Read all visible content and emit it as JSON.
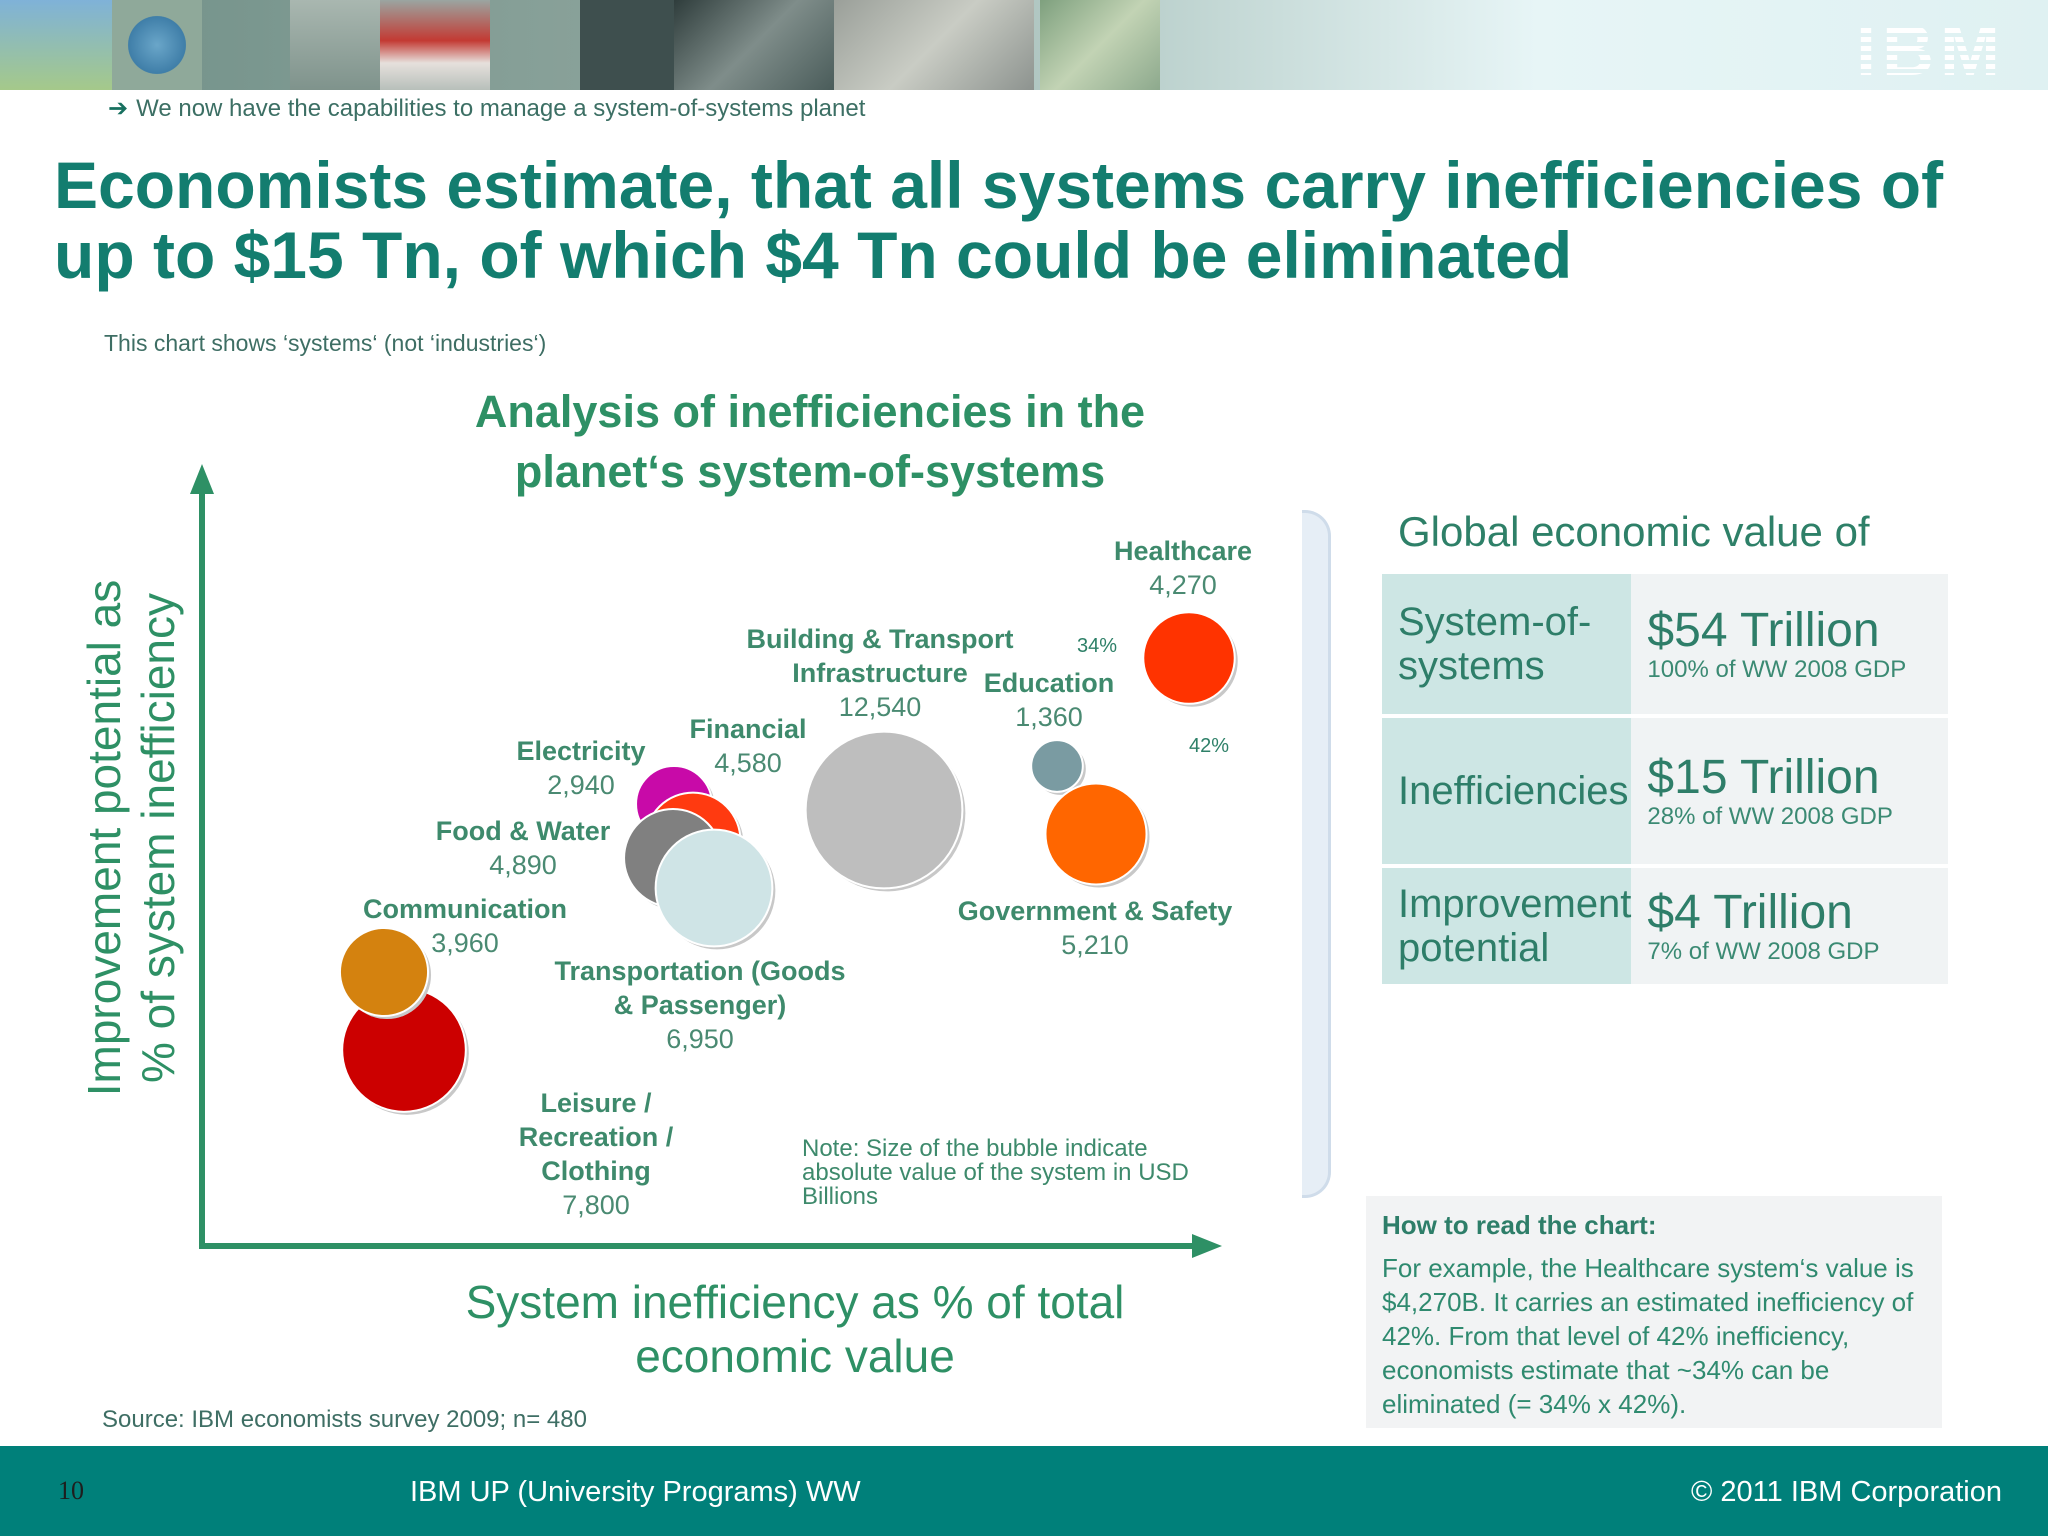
{
  "header": {
    "logo": "IBM",
    "breadcrumb": "We now have the capabilities to manage a system-of-systems planet",
    "breadcrumb_icon": "arrow-right-icon"
  },
  "title": "Economists estimate, that all systems carry inefficiencies of up to $15 Tn, of which $4 Tn could be eliminated",
  "subtitle_note": "This chart shows ‘systems‘ (not ‘industries‘)",
  "chart_data": {
    "type": "bubble",
    "title_lines": [
      "Analysis of inefficiencies in the",
      "planet‘s system-of-systems"
    ],
    "xlabel_lines": [
      "System inefficiency as % of total",
      "economic value"
    ],
    "ylabel_lines": [
      "Improvement potential as",
      "% of system inefficiency"
    ],
    "note": [
      "Note: Size of the bubble indicate",
      "absolute value of the system in USD",
      "Billions"
    ],
    "axis_ticks": "none",
    "series": [
      {
        "name": "Leisure / Recreation / Clothing",
        "label_lines": [
          "Leisure /",
          "Recreation /",
          "Clothing"
        ],
        "value": "7,800",
        "size": 7800,
        "x": 2,
        "y": 6,
        "color": "#cc0000"
      },
      {
        "name": "Communication",
        "label_lines": [
          "Communication"
        ],
        "value": "3,960",
        "size": 3960,
        "x": 2,
        "y": 20,
        "color": "#d4820f"
      },
      {
        "name": "Electricity",
        "label_lines": [
          "Electricity"
        ],
        "value": "2,940",
        "size": 2940,
        "x": 18,
        "y": 53,
        "color": "#c80aa8"
      },
      {
        "name": "Financial",
        "label_lines": [
          "Financial"
        ],
        "value": "4,580",
        "size": 4580,
        "x": 19,
        "y": 49,
        "color": "#ff3a10"
      },
      {
        "name": "Food & Water",
        "label_lines": [
          "Food & Water"
        ],
        "value": "4,890",
        "size": 4890,
        "x": 17,
        "y": 44,
        "color": "#808080"
      },
      {
        "name": "Transportation (Goods & Passenger)",
        "label_lines": [
          "Transportation (Goods",
          "& Passenger)"
        ],
        "value": "6,950",
        "size": 6950,
        "x": 20,
        "y": 40,
        "color": "#cfe4e6"
      },
      {
        "name": "Building & Transport Infrastructure",
        "label_lines": [
          "Building & Transport",
          "Infrastructure"
        ],
        "value": "12,540",
        "size": 12540,
        "x": 34,
        "y": 55,
        "color": "#bebebe"
      },
      {
        "name": "Education",
        "label_lines": [
          "Education"
        ],
        "value": "1,360",
        "size": 1360,
        "x": 42,
        "y": 62,
        "color": "#7a9ba2"
      },
      {
        "name": "Government & Safety",
        "label_lines": [
          "Government & Safety"
        ],
        "value": "5,210",
        "size": 5210,
        "x": 43,
        "y": 51,
        "color": "#ff6600"
      },
      {
        "name": "Healthcare",
        "label_lines": [
          "Healthcare"
        ],
        "value": "4,270",
        "size": 4270,
        "x": 42,
        "y": 34,
        "color": "#ff3300",
        "annotations": {
          "inefficiency": "42%",
          "improvement": "34%"
        }
      }
    ]
  },
  "global_value": {
    "title": "Global economic value of",
    "rows": [
      {
        "label": "System-of-systems",
        "big": "$54 Trillion",
        "small": "100% of WW 2008 GDP"
      },
      {
        "label": "Inefficiencies",
        "big": "$15 Trillion",
        "small": "28% of WW 2008 GDP"
      },
      {
        "label": "Improvement potential",
        "big": "$4 Trillion",
        "small": "7% of WW 2008 GDP"
      }
    ]
  },
  "howto": {
    "title": "How to read the chart:",
    "body": "For example, the Healthcare system‘s value is $4,270B. It carries an estimated inefficiency of 42%. From that level of 42% inefficiency, economists estimate that ~34% can be eliminated (= 34% x 42%)."
  },
  "source": "Source: IBM economists survey 2009; n= 480",
  "footer": {
    "page": "10",
    "center": "IBM UP (University Programs) WW",
    "right": "© 2011 IBM Corporation"
  },
  "colors": {
    "brand_teal": "#137d6f",
    "axis_green": "#2e9065",
    "footer_bg": "#00807a"
  }
}
